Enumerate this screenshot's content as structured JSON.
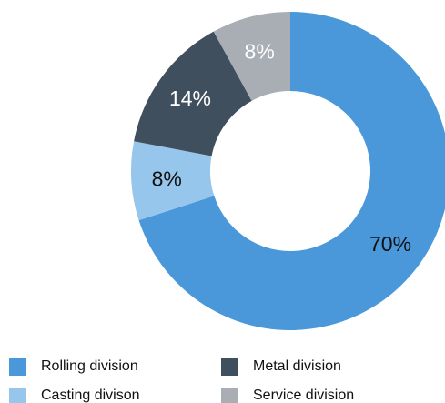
{
  "chart_data": {
    "type": "pie",
    "style": "donut",
    "title": "",
    "slices": [
      {
        "name": "Rolling division",
        "value": 70,
        "label": "70%",
        "color": "#4a98d9",
        "label_color": "#111111"
      },
      {
        "name": "Casting divison",
        "value": 8,
        "label": "8%",
        "color": "#97c6ec",
        "label_color": "#111111"
      },
      {
        "name": "Metal division",
        "value": 14,
        "label": "14%",
        "color": "#404f5e",
        "label_color": "#ffffff"
      },
      {
        "name": "Service division",
        "value": 8,
        "label": "8%",
        "color": "#a9adb4",
        "label_color": "#ffffff"
      }
    ],
    "start": "12 o'clock",
    "direction": "clockwise",
    "legend": {
      "placement": "bottom",
      "columns": 2,
      "order": [
        "Rolling division",
        "Metal division",
        "Casting divison",
        "Service division"
      ]
    }
  }
}
